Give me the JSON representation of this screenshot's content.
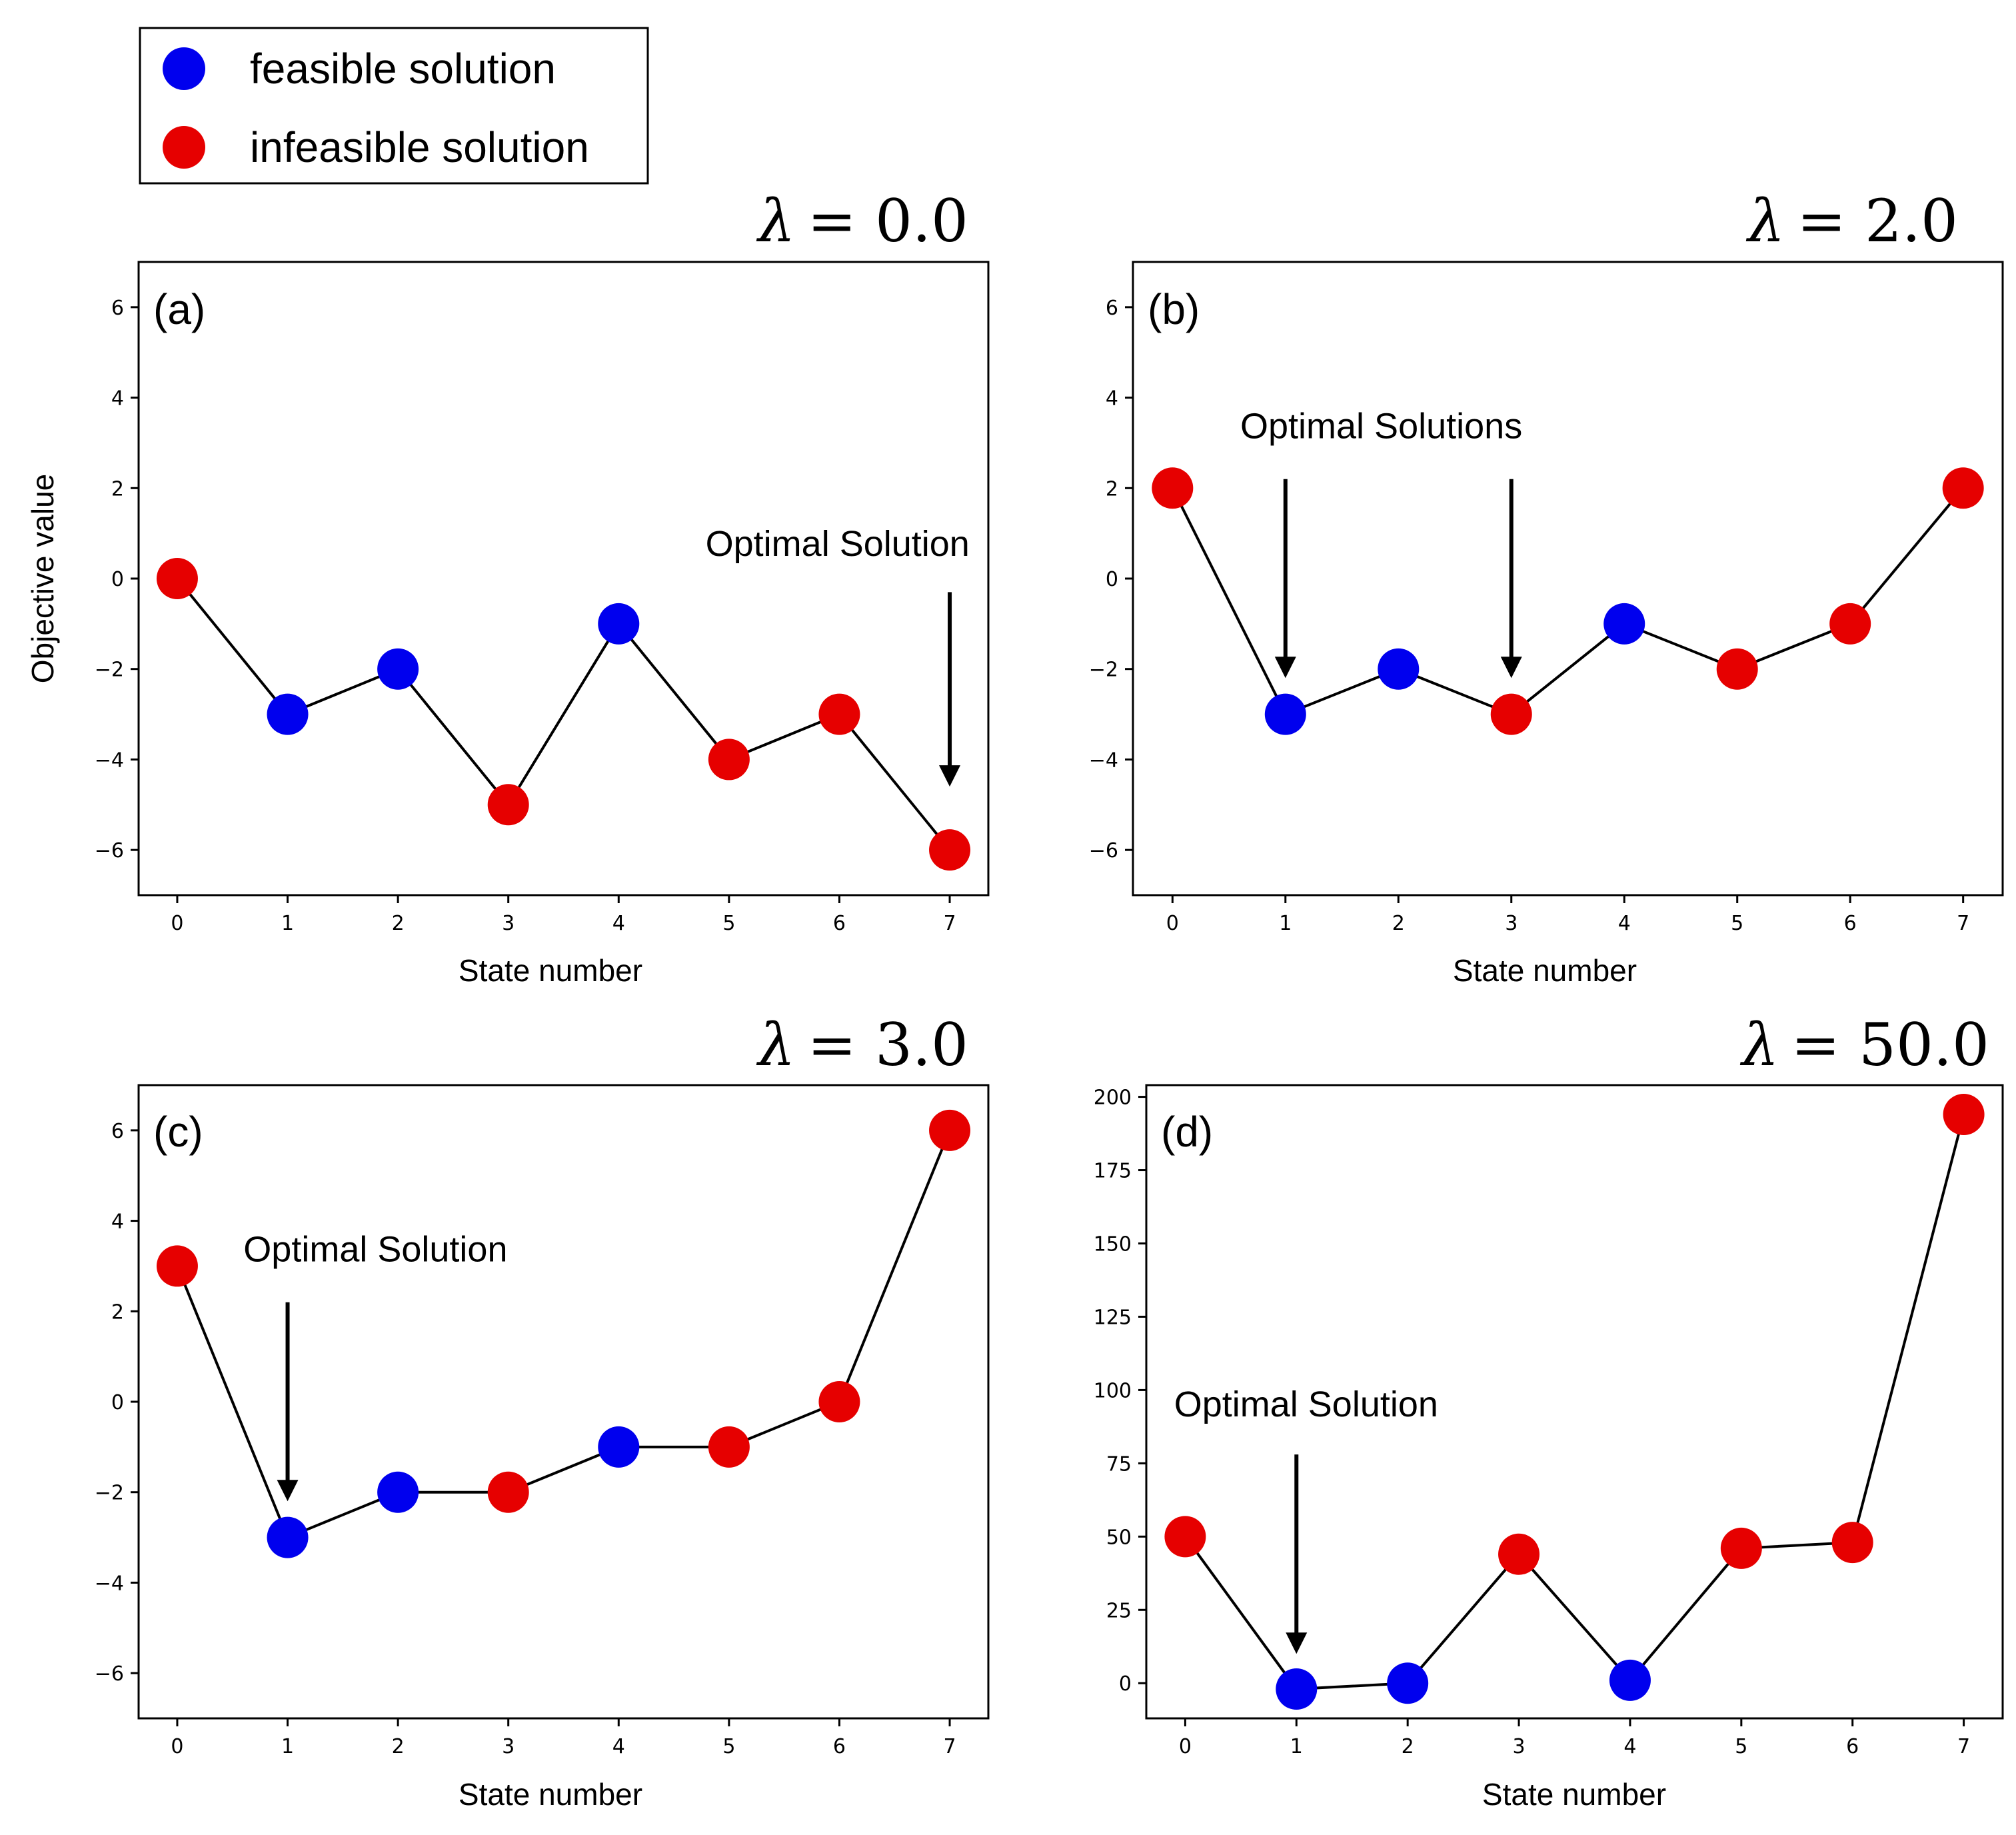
{
  "legend": {
    "items": [
      {
        "label": "feasible solution",
        "color": "#0000ee"
      },
      {
        "label": "infeasible solution",
        "color": "#e60000"
      }
    ]
  },
  "colors": {
    "feasible": "#0000ee",
    "infeasible": "#e60000",
    "line": "#000000"
  },
  "chart_data": [
    {
      "type": "line",
      "tag": "(a)",
      "lambda_symbol": "λ",
      "lambda_value": "= 0.0",
      "xlabel": "State number",
      "ylabel": "Objective value",
      "x": [
        0,
        1,
        2,
        3,
        4,
        5,
        6,
        7
      ],
      "values": [
        0,
        -3,
        -2,
        -5,
        -1,
        -4,
        -3,
        -6
      ],
      "feasible": [
        false,
        true,
        true,
        false,
        true,
        false,
        false,
        false
      ],
      "xlim": [
        -0.35,
        7.35
      ],
      "ylim": [
        -7,
        7
      ],
      "yticks": [
        -6,
        -4,
        -2,
        0,
        2,
        4,
        6
      ],
      "ytick_labels": [
        "−6",
        "−4",
        "−2",
        "0",
        "2",
        "4",
        "6"
      ],
      "xticks": [
        0,
        1,
        2,
        3,
        4,
        5,
        6,
        7
      ],
      "annotation": "Optimal Solution",
      "arrows": [
        {
          "x": 7,
          "from": -0.3,
          "to": -4.6
        }
      ],
      "annotation_at": {
        "x": 7.18,
        "y": 0.5,
        "anchor": "end"
      }
    },
    {
      "type": "line",
      "tag": "(b)",
      "lambda_symbol": "λ",
      "lambda_value": "= 2.0",
      "xlabel": "State number",
      "ylabel": "",
      "x": [
        0,
        1,
        2,
        3,
        4,
        5,
        6,
        7
      ],
      "values": [
        2,
        -3,
        -2,
        -3,
        -1,
        -2,
        -1,
        2
      ],
      "feasible": [
        false,
        true,
        true,
        false,
        true,
        false,
        false,
        false
      ],
      "xlim": [
        -0.35,
        7.35
      ],
      "ylim": [
        -7,
        7
      ],
      "yticks": [
        -6,
        -4,
        -2,
        0,
        2,
        4,
        6
      ],
      "ytick_labels": [
        "−6",
        "−4",
        "−2",
        "0",
        "2",
        "4",
        "6"
      ],
      "xticks": [
        0,
        1,
        2,
        3,
        4,
        5,
        6,
        7
      ],
      "annotation": "Optimal Solutions",
      "arrows": [
        {
          "x": 1,
          "from": 2.2,
          "to": -2.2
        },
        {
          "x": 3,
          "from": 2.2,
          "to": -2.2
        }
      ],
      "annotation_at": {
        "x": 0.6,
        "y": 3.1,
        "anchor": "start"
      }
    },
    {
      "type": "line",
      "tag": "(c)",
      "lambda_symbol": "λ",
      "lambda_value": "= 3.0",
      "xlabel": "State number",
      "ylabel": "",
      "x": [
        0,
        1,
        2,
        3,
        4,
        5,
        6,
        7
      ],
      "values": [
        3,
        -3,
        -2,
        -2,
        -1,
        -1,
        0,
        6
      ],
      "feasible": [
        false,
        true,
        true,
        false,
        true,
        false,
        false,
        false
      ],
      "xlim": [
        -0.35,
        7.35
      ],
      "ylim": [
        -7,
        7
      ],
      "yticks": [
        -6,
        -4,
        -2,
        0,
        2,
        4,
        6
      ],
      "ytick_labels": [
        "−6",
        "−4",
        "−2",
        "0",
        "2",
        "4",
        "6"
      ],
      "xticks": [
        0,
        1,
        2,
        3,
        4,
        5,
        6,
        7
      ],
      "annotation": "Optimal Solution",
      "arrows": [
        {
          "x": 1,
          "from": 2.2,
          "to": -2.2
        }
      ],
      "annotation_at": {
        "x": 0.6,
        "y": 3.1,
        "anchor": "start"
      }
    },
    {
      "type": "line",
      "tag": "(d)",
      "lambda_symbol": "λ",
      "lambda_value": "= 50.0",
      "xlabel": "State number",
      "ylabel": "",
      "x": [
        0,
        1,
        2,
        3,
        4,
        5,
        6,
        7
      ],
      "values": [
        50,
        -2,
        0,
        44,
        1,
        46,
        48,
        194
      ],
      "feasible": [
        false,
        true,
        true,
        false,
        true,
        false,
        false,
        false
      ],
      "xlim": [
        -0.35,
        7.35
      ],
      "ylim": [
        -12,
        204
      ],
      "yticks": [
        0,
        25,
        50,
        75,
        100,
        125,
        150,
        175,
        200
      ],
      "ytick_labels": [
        "0",
        "25",
        "50",
        "75",
        "100",
        "125",
        "150",
        "175",
        "200"
      ],
      "xticks": [
        0,
        1,
        2,
        3,
        4,
        5,
        6,
        7
      ],
      "annotation": "Optimal Solution",
      "arrows": [
        {
          "x": 1,
          "from": 78,
          "to": 10
        }
      ],
      "annotation_at": {
        "x": -0.1,
        "y": 91,
        "anchor": "start"
      }
    }
  ]
}
